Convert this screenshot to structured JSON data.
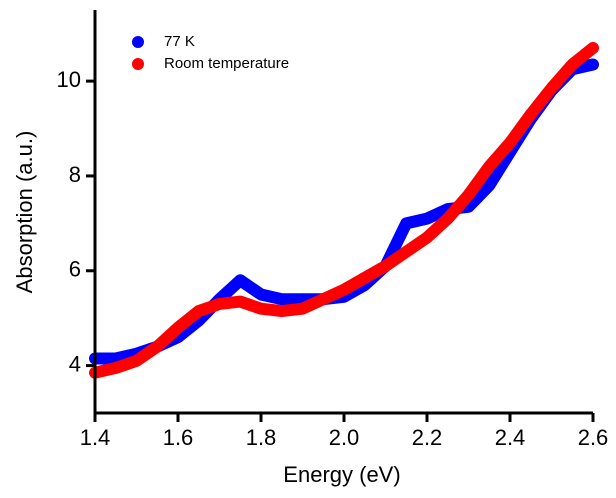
{
  "chart_data": {
    "type": "line",
    "x_label": "Energy (eV)",
    "y_label": "Absorption (a.u.)",
    "x": [
      1.4,
      1.45,
      1.5,
      1.55,
      1.6,
      1.65,
      1.7,
      1.75,
      1.8,
      1.85,
      1.9,
      1.95,
      2.0,
      2.05,
      2.1,
      2.15,
      2.2,
      2.25,
      2.3,
      2.35,
      2.4,
      2.45,
      2.5,
      2.55,
      2.6
    ],
    "series": [
      {
        "name": "77 K",
        "color": "#0000ff",
        "values": [
          4.15,
          4.15,
          4.25,
          4.4,
          4.6,
          4.95,
          5.4,
          5.8,
          5.5,
          5.4,
          5.4,
          5.4,
          5.45,
          5.7,
          6.1,
          7.0,
          7.1,
          7.3,
          7.35,
          7.8,
          8.5,
          9.2,
          9.8,
          10.25,
          10.35
        ]
      },
      {
        "name": "Room temperature",
        "color": "#ff0000",
        "values": [
          3.85,
          3.95,
          4.1,
          4.4,
          4.8,
          5.15,
          5.3,
          5.35,
          5.2,
          5.15,
          5.2,
          5.4,
          5.6,
          5.85,
          6.1,
          6.4,
          6.7,
          7.1,
          7.6,
          8.2,
          8.7,
          9.3,
          9.85,
          10.35,
          10.7
        ]
      }
    ],
    "xlim": [
      1.4,
      2.6
    ],
    "xticks": [
      1.4,
      1.6,
      1.8,
      {
        "value": 2,
        "label": "2.0"
      },
      2.2,
      2.4,
      2.6
    ],
    "ylim": [
      3,
      11.5
    ],
    "yticks": [
      4,
      6,
      8,
      10
    ],
    "legend": "upper-left"
  }
}
